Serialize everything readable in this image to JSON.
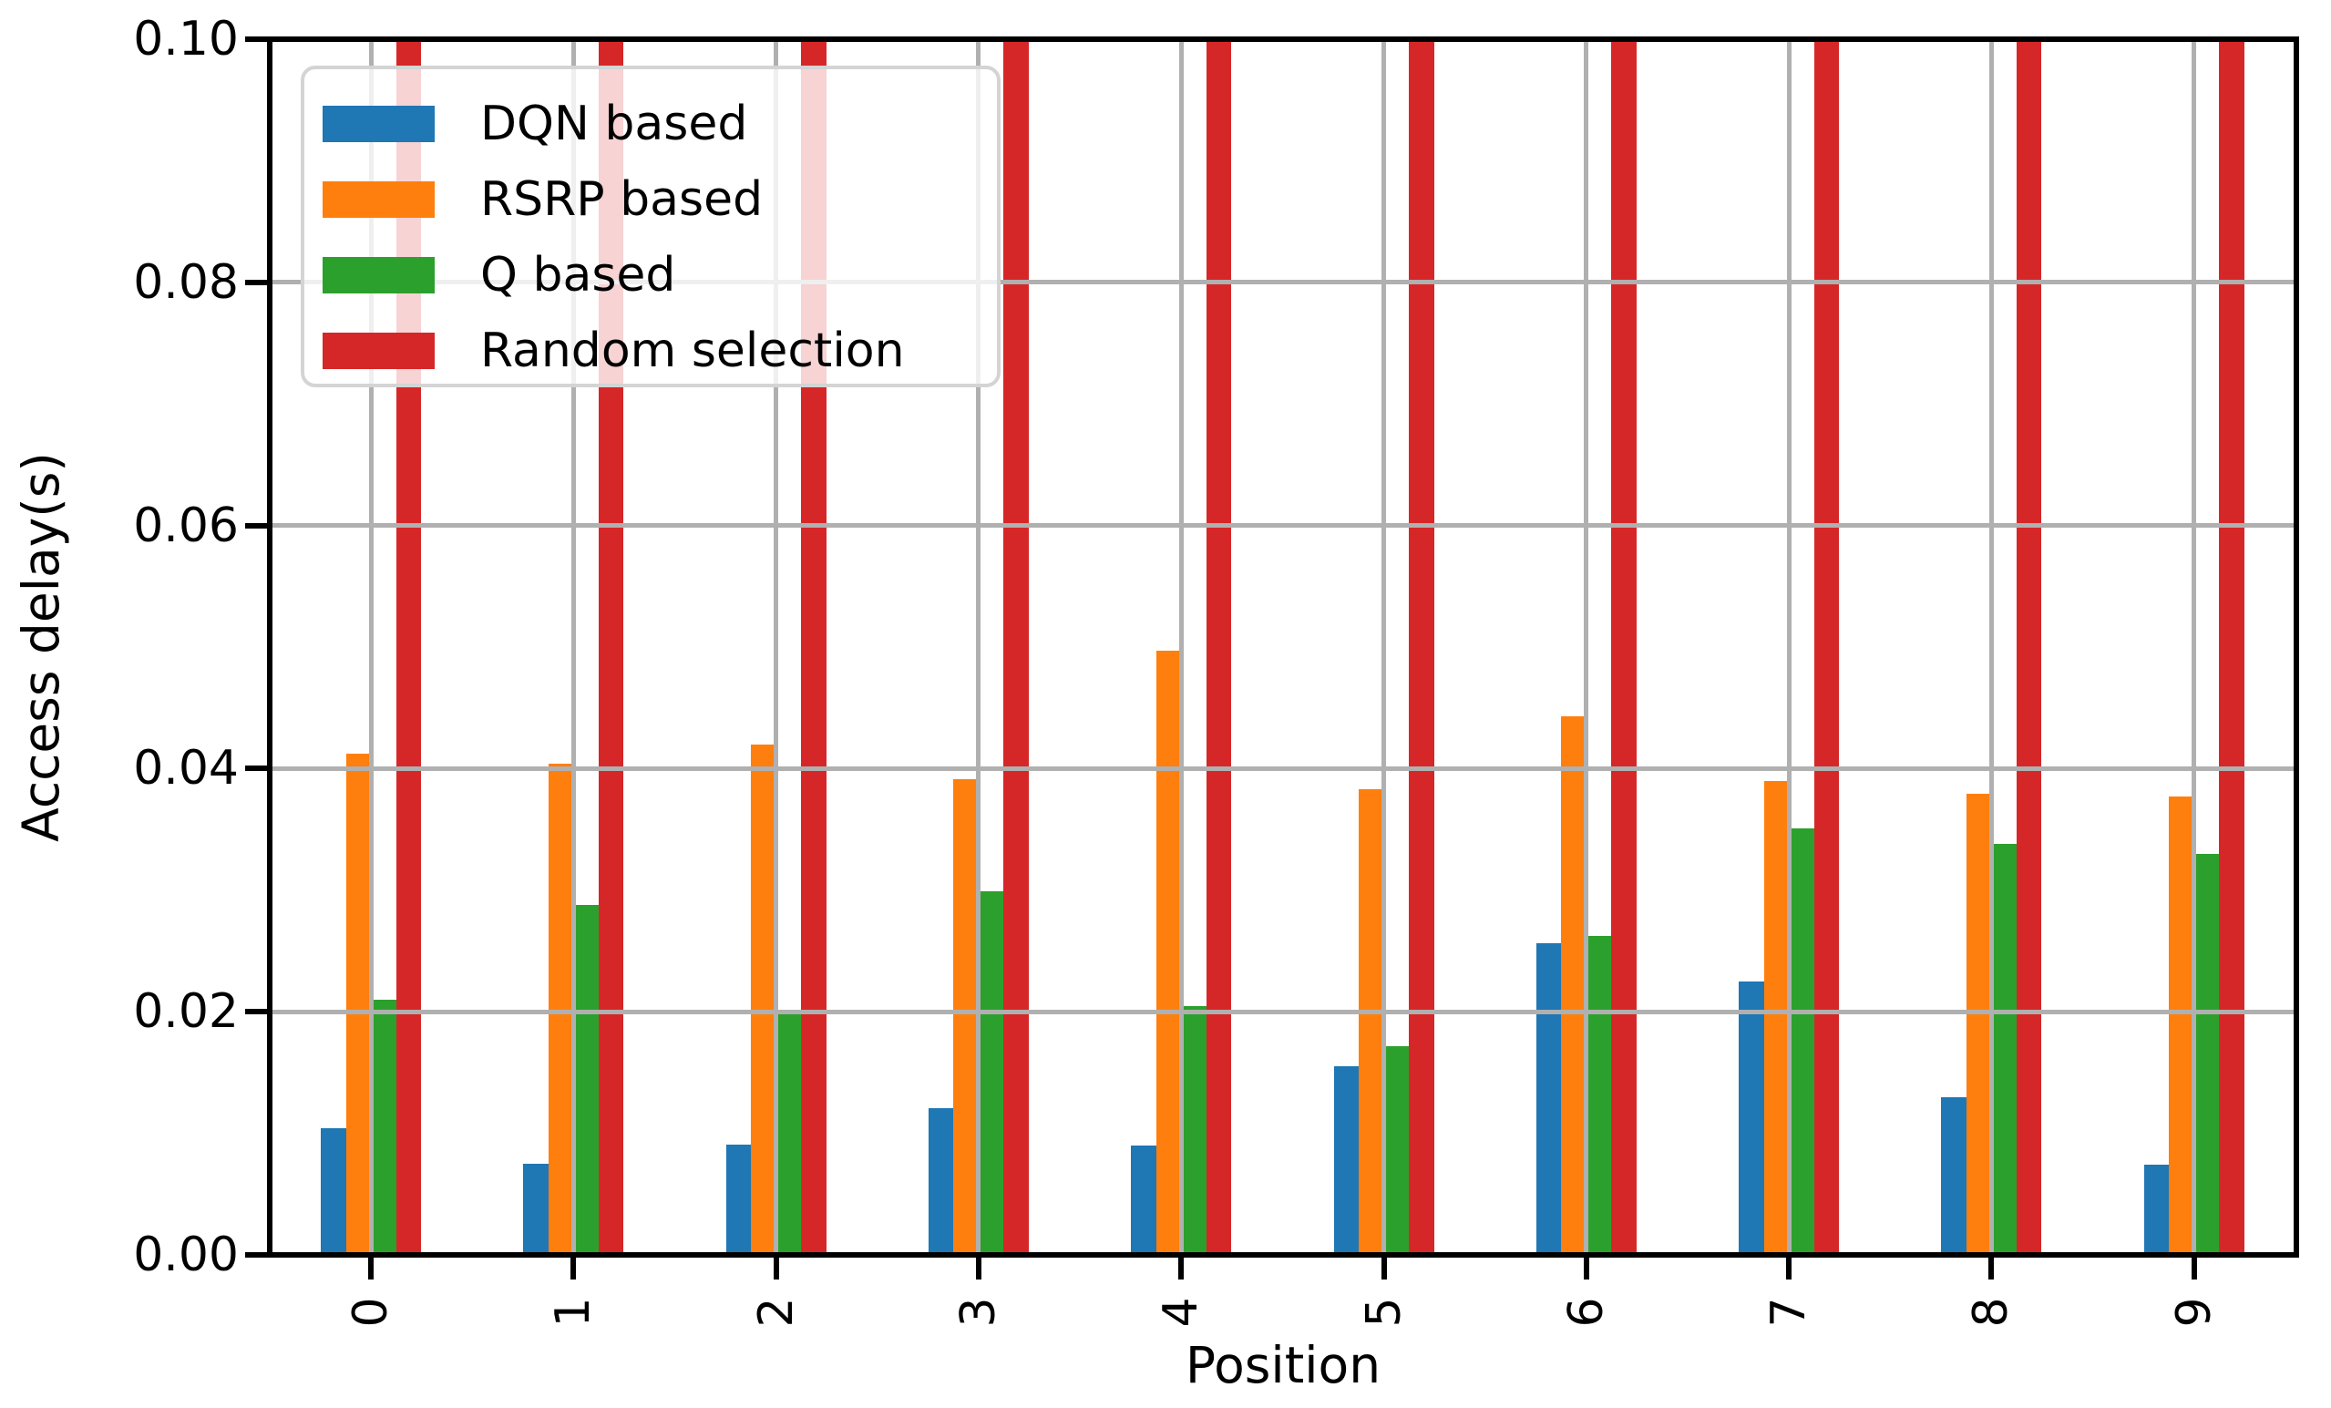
{
  "figure": {
    "background": "#ffffff"
  },
  "chart_data": {
    "type": "bar",
    "title": "",
    "xlabel": "Position",
    "ylabel": "Access delay(s)",
    "categories": [
      "0",
      "1",
      "2",
      "3",
      "4",
      "5",
      "6",
      "7",
      "8",
      "9"
    ],
    "ylim": [
      0,
      0.1
    ],
    "yticks": {
      "values": [
        0,
        0.02,
        0.04,
        0.06,
        0.08,
        0.1
      ],
      "labels": [
        "0.00",
        "0.02",
        "0.04",
        "0.06",
        "0.08",
        "0.10"
      ]
    },
    "grid": true,
    "grid_color": "#b0b0b0",
    "legend_position": "upper left",
    "series": [
      {
        "name": "DQN based",
        "color": "#1f77b4",
        "values": [
          0.0104,
          0.0075,
          0.0091,
          0.0121,
          0.009,
          0.0155,
          0.0256,
          0.0225,
          0.013,
          0.0074
        ]
      },
      {
        "name": "RSRP based",
        "color": "#ff7f0e",
        "values": [
          0.0412,
          0.0404,
          0.042,
          0.0391,
          0.0497,
          0.0383,
          0.0443,
          0.039,
          0.0379,
          0.0377
        ]
      },
      {
        "name": "Q based",
        "color": "#2ca02c",
        "values": [
          0.021,
          0.0288,
          0.0201,
          0.0299,
          0.0205,
          0.0172,
          0.0262,
          0.0351,
          0.0338,
          0.033
        ]
      },
      {
        "name": "Random selection",
        "color": "#d62728",
        "values": [
          0.12,
          0.12,
          0.12,
          0.12,
          0.12,
          0.12,
          0.12,
          0.12,
          0.12,
          0.12
        ],
        "clipped_to_ylim": true,
        "note": "All Random selection bars extend above the y-axis maximum of 0.10 (tops clipped at axis)."
      }
    ]
  }
}
